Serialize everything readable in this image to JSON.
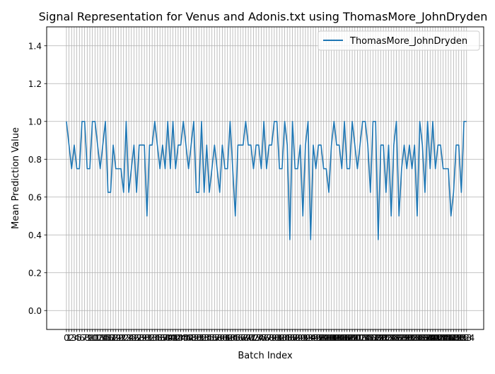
{
  "chart_data": {
    "type": "line",
    "title": "Signal Representation for Venus and Adonis.txt using ThomasMore_JohnDryden",
    "xlabel": "Batch Index",
    "ylabel": "Mean Prediction Value",
    "ylim": [
      -0.1,
      1.5
    ],
    "xlim": [
      -7.6,
      160.6
    ],
    "yticks": [
      0.0,
      0.2,
      0.4,
      0.6,
      0.8,
      1.0,
      1.2,
      1.4
    ],
    "ytick_labels": [
      "0.0",
      "0.2",
      "0.4",
      "0.6",
      "0.8",
      "1.0",
      "1.2",
      "1.4"
    ],
    "x_tick_step": 1,
    "grid": true,
    "legend_position": "upper right",
    "series": [
      {
        "name": "ThomasMore_JohnDryden",
        "color": "#1f77b4",
        "x_start": 0,
        "values": [
          1.0,
          0.875,
          0.75,
          0.875,
          0.75,
          0.75,
          1.0,
          1.0,
          0.75,
          0.75,
          1.0,
          1.0,
          0.875,
          0.75,
          0.875,
          1.0,
          0.625,
          0.625,
          0.875,
          0.75,
          0.75,
          0.75,
          0.625,
          1.0,
          0.625,
          0.75,
          0.875,
          0.625,
          0.875,
          0.875,
          0.875,
          0.5,
          0.875,
          0.875,
          1.0,
          0.875,
          0.75,
          0.875,
          0.75,
          1.0,
          0.75,
          1.0,
          0.75,
          0.875,
          0.875,
          1.0,
          0.875,
          0.75,
          0.875,
          1.0,
          0.625,
          0.625,
          1.0,
          0.625,
          0.875,
          0.625,
          0.75,
          0.875,
          0.75,
          0.625,
          0.875,
          0.75,
          0.75,
          1.0,
          0.75,
          0.5,
          0.875,
          0.875,
          0.875,
          1.0,
          0.875,
          0.875,
          0.75,
          0.875,
          0.875,
          0.75,
          1.0,
          0.75,
          0.875,
          0.875,
          1.0,
          1.0,
          0.75,
          0.75,
          1.0,
          0.875,
          0.375,
          1.0,
          0.75,
          0.75,
          0.875,
          0.5,
          0.875,
          1.0,
          0.375,
          0.875,
          0.75,
          0.875,
          0.875,
          0.75,
          0.75,
          0.625,
          0.875,
          1.0,
          0.875,
          0.875,
          0.75,
          1.0,
          0.75,
          0.75,
          1.0,
          0.875,
          0.75,
          0.875,
          1.0,
          1.0,
          0.875,
          0.625,
          1.0,
          1.0,
          0.375,
          0.875,
          0.875,
          0.625,
          0.875,
          0.5,
          0.875,
          1.0,
          0.5,
          0.75,
          0.875,
          0.75,
          0.875,
          0.75,
          0.875,
          0.5,
          1.0,
          0.875,
          0.625,
          1.0,
          0.75,
          1.0,
          0.75,
          0.875,
          0.875,
          0.75,
          0.75,
          0.75,
          0.5,
          0.625,
          0.875,
          0.875,
          0.625,
          1.0,
          1.0
        ]
      }
    ]
  }
}
